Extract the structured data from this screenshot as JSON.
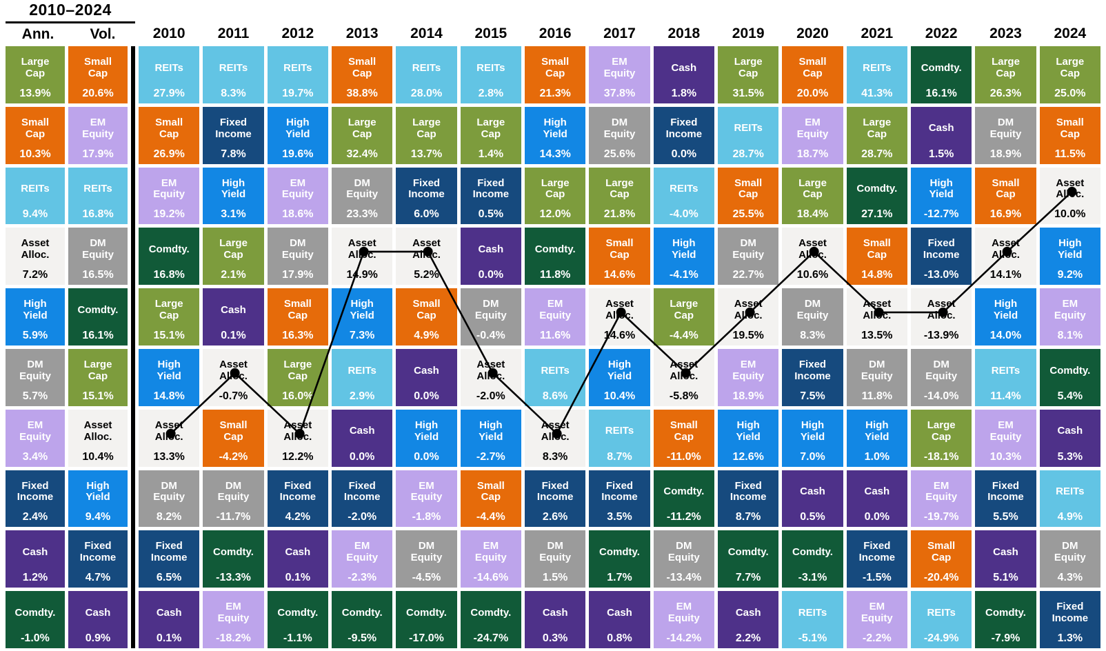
{
  "palette": {
    "Large Cap": {
      "bg": "#7D9C3D",
      "fg": "#FFFFFF"
    },
    "Small Cap": {
      "bg": "#E66B0A",
      "fg": "#FFFFFF"
    },
    "REITs": {
      "bg": "#62C4E4",
      "fg": "#FFFFFF"
    },
    "EM Equity": {
      "bg": "#BDA4EB",
      "fg": "#FFFFFF"
    },
    "DM Equity": {
      "bg": "#9B9B9B",
      "fg": "#FFFFFF"
    },
    "Fixed Income": {
      "bg": "#164A7E",
      "fg": "#FFFFFF"
    },
    "High Yield": {
      "bg": "#1287E4",
      "fg": "#FFFFFF"
    },
    "Cash": {
      "bg": "#4E3189",
      "fg": "#FFFFFF"
    },
    "Comdty.": {
      "bg": "#115A38",
      "fg": "#FFFFFF"
    },
    "Asset Alloc.": {
      "bg": "#F3F2F0",
      "fg": "#000000"
    }
  },
  "chart_data": {
    "type": "table",
    "title": "2010–2024",
    "value_unit": "%",
    "line_overlay": {
      "asset": "Asset Alloc.",
      "color": "#000000",
      "marker": "dot"
    },
    "col_headers": [
      "Ann.",
      "Vol.",
      "2010",
      "2011",
      "2012",
      "2013",
      "2014",
      "2015",
      "2016",
      "2017",
      "2018",
      "2019",
      "2020",
      "2021",
      "2022",
      "2023",
      "2024"
    ],
    "columns": [
      {
        "header": "Ann.",
        "cells": [
          {
            "asset": "Large Cap",
            "value": 13.9
          },
          {
            "asset": "Small Cap",
            "value": 10.3
          },
          {
            "asset": "REITs",
            "value": 9.4
          },
          {
            "asset": "Asset Alloc.",
            "value": 7.2
          },
          {
            "asset": "High Yield",
            "value": 5.9
          },
          {
            "asset": "DM Equity",
            "value": 5.7
          },
          {
            "asset": "EM Equity",
            "value": 3.4
          },
          {
            "asset": "Fixed Income",
            "value": 2.4
          },
          {
            "asset": "Cash",
            "value": 1.2
          },
          {
            "asset": "Comdty.",
            "value": -1.0
          }
        ]
      },
      {
        "header": "Vol.",
        "cells": [
          {
            "asset": "Small Cap",
            "value": 20.6
          },
          {
            "asset": "EM Equity",
            "value": 17.9
          },
          {
            "asset": "REITs",
            "value": 16.8
          },
          {
            "asset": "DM Equity",
            "value": 16.5
          },
          {
            "asset": "Comdty.",
            "value": 16.1
          },
          {
            "asset": "Large Cap",
            "value": 15.1
          },
          {
            "asset": "Asset Alloc.",
            "value": 10.4
          },
          {
            "asset": "High Yield",
            "value": 9.4
          },
          {
            "asset": "Fixed Income",
            "value": 4.7
          },
          {
            "asset": "Cash",
            "value": 0.9
          }
        ]
      },
      {
        "header": "2010",
        "cells": [
          {
            "asset": "REITs",
            "value": 27.9
          },
          {
            "asset": "Small Cap",
            "value": 26.9
          },
          {
            "asset": "EM Equity",
            "value": 19.2
          },
          {
            "asset": "Comdty.",
            "value": 16.8
          },
          {
            "asset": "Large Cap",
            "value": 15.1
          },
          {
            "asset": "High Yield",
            "value": 14.8
          },
          {
            "asset": "Asset Alloc.",
            "value": 13.3
          },
          {
            "asset": "DM Equity",
            "value": 8.2
          },
          {
            "asset": "Fixed Income",
            "value": 6.5
          },
          {
            "asset": "Cash",
            "value": 0.1
          }
        ]
      },
      {
        "header": "2011",
        "cells": [
          {
            "asset": "REITs",
            "value": 8.3
          },
          {
            "asset": "Fixed Income",
            "value": 7.8
          },
          {
            "asset": "High Yield",
            "value": 3.1
          },
          {
            "asset": "Large Cap",
            "value": 2.1
          },
          {
            "asset": "Cash",
            "value": 0.1
          },
          {
            "asset": "Asset Alloc.",
            "value": -0.7
          },
          {
            "asset": "Small Cap",
            "value": -4.2
          },
          {
            "asset": "DM Equity",
            "value": -11.7
          },
          {
            "asset": "Comdty.",
            "value": -13.3
          },
          {
            "asset": "EM Equity",
            "value": -18.2
          }
        ]
      },
      {
        "header": "2012",
        "cells": [
          {
            "asset": "REITs",
            "value": 19.7
          },
          {
            "asset": "High Yield",
            "value": 19.6
          },
          {
            "asset": "EM Equity",
            "value": 18.6
          },
          {
            "asset": "DM Equity",
            "value": 17.9
          },
          {
            "asset": "Small Cap",
            "value": 16.3
          },
          {
            "asset": "Large Cap",
            "value": 16.0
          },
          {
            "asset": "Asset Alloc.",
            "value": 12.2
          },
          {
            "asset": "Fixed Income",
            "value": 4.2
          },
          {
            "asset": "Cash",
            "value": 0.1
          },
          {
            "asset": "Comdty.",
            "value": -1.1
          }
        ]
      },
      {
        "header": "2013",
        "cells": [
          {
            "asset": "Small Cap",
            "value": 38.8
          },
          {
            "asset": "Large Cap",
            "value": 32.4
          },
          {
            "asset": "DM Equity",
            "value": 23.3
          },
          {
            "asset": "Asset Alloc.",
            "value": 14.9
          },
          {
            "asset": "High Yield",
            "value": 7.3
          },
          {
            "asset": "REITs",
            "value": 2.9
          },
          {
            "asset": "Cash",
            "value": 0.0
          },
          {
            "asset": "Fixed Income",
            "value": -2.0
          },
          {
            "asset": "EM Equity",
            "value": -2.3
          },
          {
            "asset": "Comdty.",
            "value": -9.5
          }
        ]
      },
      {
        "header": "2014",
        "cells": [
          {
            "asset": "REITs",
            "value": 28.0
          },
          {
            "asset": "Large Cap",
            "value": 13.7
          },
          {
            "asset": "Fixed Income",
            "value": 6.0
          },
          {
            "asset": "Asset Alloc.",
            "value": 5.2
          },
          {
            "asset": "Small Cap",
            "value": 4.9
          },
          {
            "asset": "Cash",
            "value": 0.0
          },
          {
            "asset": "High Yield",
            "value": 0.0
          },
          {
            "asset": "EM Equity",
            "value": -1.8
          },
          {
            "asset": "DM Equity",
            "value": -4.5
          },
          {
            "asset": "Comdty.",
            "value": -17.0
          }
        ]
      },
      {
        "header": "2015",
        "cells": [
          {
            "asset": "REITs",
            "value": 2.8
          },
          {
            "asset": "Large Cap",
            "value": 1.4
          },
          {
            "asset": "Fixed Income",
            "value": 0.5
          },
          {
            "asset": "Cash",
            "value": 0.0
          },
          {
            "asset": "DM Equity",
            "value": -0.4
          },
          {
            "asset": "Asset Alloc.",
            "value": -2.0
          },
          {
            "asset": "High Yield",
            "value": -2.7
          },
          {
            "asset": "Small Cap",
            "value": -4.4
          },
          {
            "asset": "EM Equity",
            "value": -14.6
          },
          {
            "asset": "Comdty.",
            "value": -24.7
          }
        ]
      },
      {
        "header": "2016",
        "cells": [
          {
            "asset": "Small Cap",
            "value": 21.3
          },
          {
            "asset": "High Yield",
            "value": 14.3
          },
          {
            "asset": "Large Cap",
            "value": 12.0
          },
          {
            "asset": "Comdty.",
            "value": 11.8
          },
          {
            "asset": "EM Equity",
            "value": 11.6
          },
          {
            "asset": "REITs",
            "value": 8.6
          },
          {
            "asset": "Asset Alloc.",
            "value": 8.3
          },
          {
            "asset": "Fixed Income",
            "value": 2.6
          },
          {
            "asset": "DM Equity",
            "value": 1.5
          },
          {
            "asset": "Cash",
            "value": 0.3
          }
        ]
      },
      {
        "header": "2017",
        "cells": [
          {
            "asset": "EM Equity",
            "value": 37.8
          },
          {
            "asset": "DM Equity",
            "value": 25.6
          },
          {
            "asset": "Large Cap",
            "value": 21.8
          },
          {
            "asset": "Small Cap",
            "value": 14.6
          },
          {
            "asset": "Asset Alloc.",
            "value": 14.6
          },
          {
            "asset": "High Yield",
            "value": 10.4
          },
          {
            "asset": "REITs",
            "value": 8.7
          },
          {
            "asset": "Fixed Income",
            "value": 3.5
          },
          {
            "asset": "Comdty.",
            "value": 1.7
          },
          {
            "asset": "Cash",
            "value": 0.8
          }
        ]
      },
      {
        "header": "2018",
        "cells": [
          {
            "asset": "Cash",
            "value": 1.8
          },
          {
            "asset": "Fixed Income",
            "value": 0.0
          },
          {
            "asset": "REITs",
            "value": -4.0
          },
          {
            "asset": "High Yield",
            "value": -4.1
          },
          {
            "asset": "Large Cap",
            "value": -4.4
          },
          {
            "asset": "Asset Alloc.",
            "value": -5.8
          },
          {
            "asset": "Small Cap",
            "value": -11.0
          },
          {
            "asset": "Comdty.",
            "value": -11.2
          },
          {
            "asset": "DM Equity",
            "value": -13.4
          },
          {
            "asset": "EM Equity",
            "value": -14.2
          }
        ]
      },
      {
        "header": "2019",
        "cells": [
          {
            "asset": "Large Cap",
            "value": 31.5
          },
          {
            "asset": "REITs",
            "value": 28.7
          },
          {
            "asset": "Small Cap",
            "value": 25.5
          },
          {
            "asset": "DM Equity",
            "value": 22.7
          },
          {
            "asset": "Asset Alloc.",
            "value": 19.5
          },
          {
            "asset": "EM Equity",
            "value": 18.9
          },
          {
            "asset": "High Yield",
            "value": 12.6
          },
          {
            "asset": "Fixed Income",
            "value": 8.7
          },
          {
            "asset": "Comdty.",
            "value": 7.7
          },
          {
            "asset": "Cash",
            "value": 2.2
          }
        ]
      },
      {
        "header": "2020",
        "cells": [
          {
            "asset": "Small Cap",
            "value": 20.0
          },
          {
            "asset": "EM Equity",
            "value": 18.7
          },
          {
            "asset": "Large Cap",
            "value": 18.4
          },
          {
            "asset": "Asset Alloc.",
            "value": 10.6
          },
          {
            "asset": "DM Equity",
            "value": 8.3
          },
          {
            "asset": "Fixed Income",
            "value": 7.5
          },
          {
            "asset": "High Yield",
            "value": 7.0
          },
          {
            "asset": "Cash",
            "value": 0.5
          },
          {
            "asset": "Comdty.",
            "value": -3.1
          },
          {
            "asset": "REITs",
            "value": -5.1
          }
        ]
      },
      {
        "header": "2021",
        "cells": [
          {
            "asset": "REITs",
            "value": 41.3
          },
          {
            "asset": "Large Cap",
            "value": 28.7
          },
          {
            "asset": "Comdty.",
            "value": 27.1
          },
          {
            "asset": "Small Cap",
            "value": 14.8
          },
          {
            "asset": "Asset Alloc.",
            "value": 13.5
          },
          {
            "asset": "DM Equity",
            "value": 11.8
          },
          {
            "asset": "High Yield",
            "value": 1.0
          },
          {
            "asset": "Cash",
            "value": 0.0
          },
          {
            "asset": "Fixed Income",
            "value": -1.5
          },
          {
            "asset": "EM Equity",
            "value": -2.2
          }
        ]
      },
      {
        "header": "2022",
        "cells": [
          {
            "asset": "Comdty.",
            "value": 16.1
          },
          {
            "asset": "Cash",
            "value": 1.5
          },
          {
            "asset": "High Yield",
            "value": -12.7
          },
          {
            "asset": "Fixed Income",
            "value": -13.0
          },
          {
            "asset": "Asset Alloc.",
            "value": -13.9
          },
          {
            "asset": "DM Equity",
            "value": -14.0
          },
          {
            "asset": "Large Cap",
            "value": -18.1
          },
          {
            "asset": "EM Equity",
            "value": -19.7
          },
          {
            "asset": "Small Cap",
            "value": -20.4
          },
          {
            "asset": "REITs",
            "value": -24.9
          }
        ]
      },
      {
        "header": "2023",
        "cells": [
          {
            "asset": "Large Cap",
            "value": 26.3
          },
          {
            "asset": "DM Equity",
            "value": 18.9
          },
          {
            "asset": "Small Cap",
            "value": 16.9
          },
          {
            "asset": "Asset Alloc.",
            "value": 14.1
          },
          {
            "asset": "High Yield",
            "value": 14.0
          },
          {
            "asset": "REITs",
            "value": 11.4
          },
          {
            "asset": "EM Equity",
            "value": 10.3
          },
          {
            "asset": "Fixed Income",
            "value": 5.5
          },
          {
            "asset": "Cash",
            "value": 5.1
          },
          {
            "asset": "Comdty.",
            "value": -7.9
          }
        ]
      },
      {
        "header": "2024",
        "cells": [
          {
            "asset": "Large Cap",
            "value": 25.0
          },
          {
            "asset": "Small Cap",
            "value": 11.5
          },
          {
            "asset": "Asset Alloc.",
            "value": 10.0
          },
          {
            "asset": "High Yield",
            "value": 9.2
          },
          {
            "asset": "EM Equity",
            "value": 8.1
          },
          {
            "asset": "Comdty.",
            "value": 5.4
          },
          {
            "asset": "Cash",
            "value": 5.3
          },
          {
            "asset": "REITs",
            "value": 4.9
          },
          {
            "asset": "DM Equity",
            "value": 4.3
          },
          {
            "asset": "Fixed Income",
            "value": 1.3
          }
        ]
      }
    ]
  }
}
